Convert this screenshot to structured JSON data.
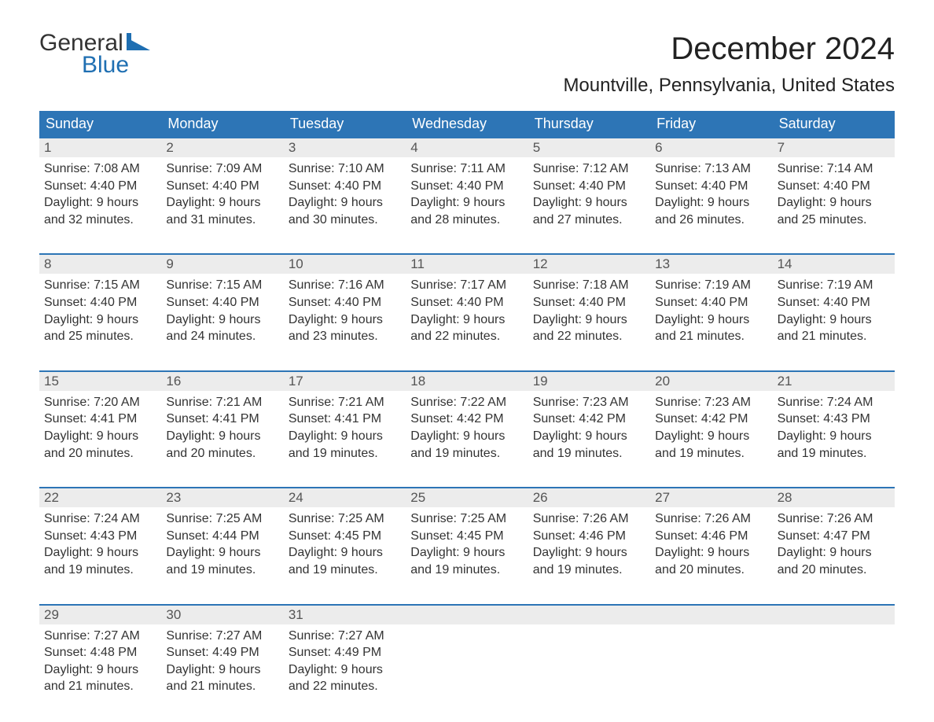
{
  "brand": {
    "word1": "General",
    "word2": "Blue",
    "flag_color": "#1f6fb2",
    "text_color": "#333333",
    "blue_text_color": "#1f6fb2"
  },
  "title": "December 2024",
  "location": "Mountville, Pennsylvania, United States",
  "colors": {
    "header_bg": "#2d75b6",
    "header_text": "#ffffff",
    "daynum_bg": "#ececec",
    "daynum_text": "#555555",
    "body_text": "#333333",
    "page_bg": "#ffffff",
    "week_border": "#2d75b6"
  },
  "typography": {
    "title_fontsize": 40,
    "location_fontsize": 24,
    "weekday_fontsize": 18,
    "daynum_fontsize": 17,
    "body_fontsize": 16,
    "logo_fontsize": 30
  },
  "weekdays": [
    "Sunday",
    "Monday",
    "Tuesday",
    "Wednesday",
    "Thursday",
    "Friday",
    "Saturday"
  ],
  "labels": {
    "sunrise_prefix": "Sunrise: ",
    "sunset_prefix": "Sunset: ",
    "daylight_prefix": "Daylight: ",
    "and_word": "and ",
    "minutes_suffix": " minutes."
  },
  "weeks": [
    {
      "days": [
        {
          "num": "1",
          "sunrise": "7:08 AM",
          "sunset": "4:40 PM",
          "dl_h": "9 hours",
          "dl_m": "32"
        },
        {
          "num": "2",
          "sunrise": "7:09 AM",
          "sunset": "4:40 PM",
          "dl_h": "9 hours",
          "dl_m": "31"
        },
        {
          "num": "3",
          "sunrise": "7:10 AM",
          "sunset": "4:40 PM",
          "dl_h": "9 hours",
          "dl_m": "30"
        },
        {
          "num": "4",
          "sunrise": "7:11 AM",
          "sunset": "4:40 PM",
          "dl_h": "9 hours",
          "dl_m": "28"
        },
        {
          "num": "5",
          "sunrise": "7:12 AM",
          "sunset": "4:40 PM",
          "dl_h": "9 hours",
          "dl_m": "27"
        },
        {
          "num": "6",
          "sunrise": "7:13 AM",
          "sunset": "4:40 PM",
          "dl_h": "9 hours",
          "dl_m": "26"
        },
        {
          "num": "7",
          "sunrise": "7:14 AM",
          "sunset": "4:40 PM",
          "dl_h": "9 hours",
          "dl_m": "25"
        }
      ]
    },
    {
      "days": [
        {
          "num": "8",
          "sunrise": "7:15 AM",
          "sunset": "4:40 PM",
          "dl_h": "9 hours",
          "dl_m": "25"
        },
        {
          "num": "9",
          "sunrise": "7:15 AM",
          "sunset": "4:40 PM",
          "dl_h": "9 hours",
          "dl_m": "24"
        },
        {
          "num": "10",
          "sunrise": "7:16 AM",
          "sunset": "4:40 PM",
          "dl_h": "9 hours",
          "dl_m": "23"
        },
        {
          "num": "11",
          "sunrise": "7:17 AM",
          "sunset": "4:40 PM",
          "dl_h": "9 hours",
          "dl_m": "22"
        },
        {
          "num": "12",
          "sunrise": "7:18 AM",
          "sunset": "4:40 PM",
          "dl_h": "9 hours",
          "dl_m": "22"
        },
        {
          "num": "13",
          "sunrise": "7:19 AM",
          "sunset": "4:40 PM",
          "dl_h": "9 hours",
          "dl_m": "21"
        },
        {
          "num": "14",
          "sunrise": "7:19 AM",
          "sunset": "4:40 PM",
          "dl_h": "9 hours",
          "dl_m": "21"
        }
      ]
    },
    {
      "days": [
        {
          "num": "15",
          "sunrise": "7:20 AM",
          "sunset": "4:41 PM",
          "dl_h": "9 hours",
          "dl_m": "20"
        },
        {
          "num": "16",
          "sunrise": "7:21 AM",
          "sunset": "4:41 PM",
          "dl_h": "9 hours",
          "dl_m": "20"
        },
        {
          "num": "17",
          "sunrise": "7:21 AM",
          "sunset": "4:41 PM",
          "dl_h": "9 hours",
          "dl_m": "19"
        },
        {
          "num": "18",
          "sunrise": "7:22 AM",
          "sunset": "4:42 PM",
          "dl_h": "9 hours",
          "dl_m": "19"
        },
        {
          "num": "19",
          "sunrise": "7:23 AM",
          "sunset": "4:42 PM",
          "dl_h": "9 hours",
          "dl_m": "19"
        },
        {
          "num": "20",
          "sunrise": "7:23 AM",
          "sunset": "4:42 PM",
          "dl_h": "9 hours",
          "dl_m": "19"
        },
        {
          "num": "21",
          "sunrise": "7:24 AM",
          "sunset": "4:43 PM",
          "dl_h": "9 hours",
          "dl_m": "19"
        }
      ]
    },
    {
      "days": [
        {
          "num": "22",
          "sunrise": "7:24 AM",
          "sunset": "4:43 PM",
          "dl_h": "9 hours",
          "dl_m": "19"
        },
        {
          "num": "23",
          "sunrise": "7:25 AM",
          "sunset": "4:44 PM",
          "dl_h": "9 hours",
          "dl_m": "19"
        },
        {
          "num": "24",
          "sunrise": "7:25 AM",
          "sunset": "4:45 PM",
          "dl_h": "9 hours",
          "dl_m": "19"
        },
        {
          "num": "25",
          "sunrise": "7:25 AM",
          "sunset": "4:45 PM",
          "dl_h": "9 hours",
          "dl_m": "19"
        },
        {
          "num": "26",
          "sunrise": "7:26 AM",
          "sunset": "4:46 PM",
          "dl_h": "9 hours",
          "dl_m": "19"
        },
        {
          "num": "27",
          "sunrise": "7:26 AM",
          "sunset": "4:46 PM",
          "dl_h": "9 hours",
          "dl_m": "20"
        },
        {
          "num": "28",
          "sunrise": "7:26 AM",
          "sunset": "4:47 PM",
          "dl_h": "9 hours",
          "dl_m": "20"
        }
      ]
    },
    {
      "days": [
        {
          "num": "29",
          "sunrise": "7:27 AM",
          "sunset": "4:48 PM",
          "dl_h": "9 hours",
          "dl_m": "21"
        },
        {
          "num": "30",
          "sunrise": "7:27 AM",
          "sunset": "4:49 PM",
          "dl_h": "9 hours",
          "dl_m": "21"
        },
        {
          "num": "31",
          "sunrise": "7:27 AM",
          "sunset": "4:49 PM",
          "dl_h": "9 hours",
          "dl_m": "22"
        },
        null,
        null,
        null,
        null
      ]
    }
  ]
}
